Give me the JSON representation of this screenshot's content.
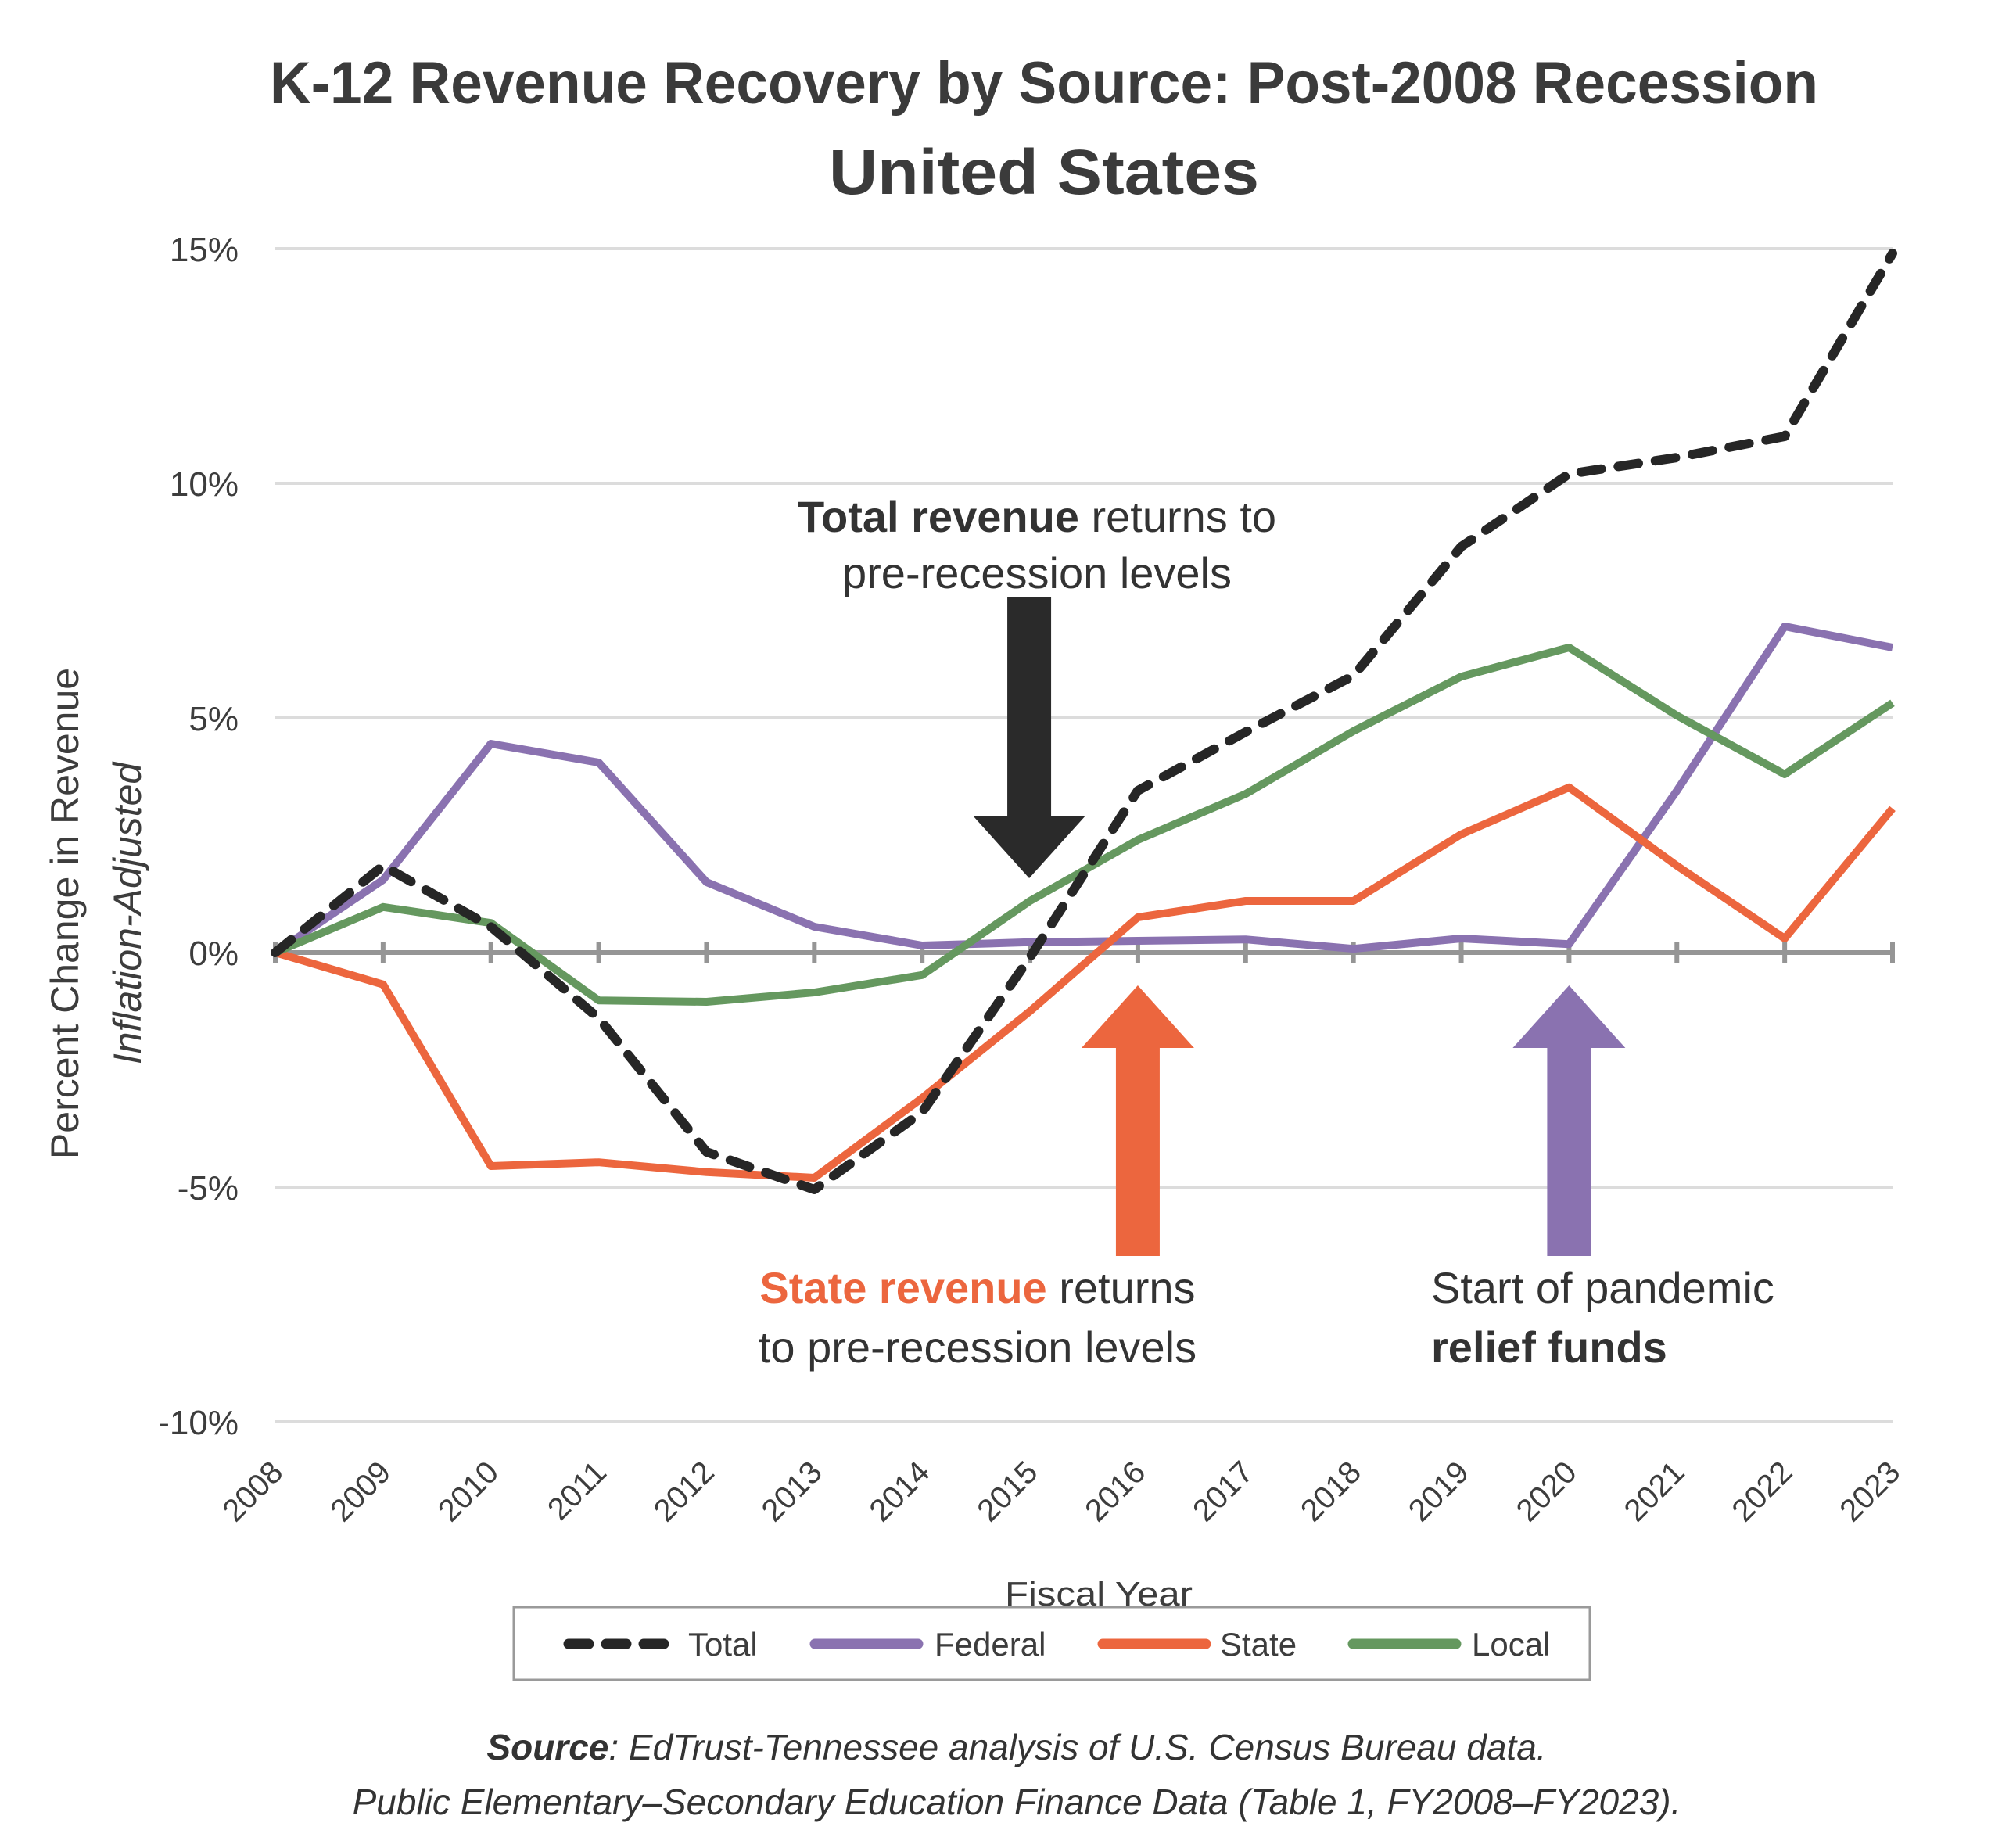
{
  "chart_data": {
    "type": "line",
    "title": "K-12 Revenue Recovery by Source: Post-2008 Recession",
    "subtitle": "United States",
    "xlabel": "Fiscal Year",
    "ylabel": "Percent  Change in Revenue",
    "ylabel_sub": "Inflation-Adjusted",
    "x": [
      "2008",
      "2009",
      "2010",
      "2011",
      "2012",
      "2013",
      "2014",
      "2015",
      "2016",
      "2017",
      "2018",
      "2019",
      "2020",
      "2021",
      "2022",
      "2023"
    ],
    "ylim": [
      -10,
      15
    ],
    "yticks": [
      -10,
      -5,
      0,
      5,
      10,
      15
    ],
    "ytick_labels": [
      "-10%",
      "-5%",
      "0%",
      "5%",
      "10%",
      "15%"
    ],
    "grid": true,
    "legend_position": "bottom",
    "series": [
      {
        "name": "Total",
        "style": "dashed",
        "color": "#262626",
        "values": [
          0,
          1.85,
          0.55,
          -1.4,
          -4.25,
          -5.05,
          -3.4,
          -0.1,
          3.45,
          4.7,
          5.9,
          8.65,
          10.2,
          10.55,
          11.0,
          14.9
        ]
      },
      {
        "name": "Federal",
        "style": "solid",
        "color": "#8a72b0",
        "values": [
          0,
          1.55,
          4.45,
          4.05,
          1.5,
          0.55,
          0.15,
          0.22,
          0.25,
          0.28,
          0.08,
          0.3,
          0.18,
          3.45,
          6.95,
          6.5
        ]
      },
      {
        "name": "State",
        "style": "solid",
        "color": "#ec663e",
        "values": [
          0,
          -0.68,
          -4.55,
          -4.47,
          -4.68,
          -4.8,
          -3.1,
          -1.25,
          0.75,
          1.1,
          1.1,
          2.52,
          3.52,
          1.85,
          0.3,
          3.07
        ]
      },
      {
        "name": "Local",
        "style": "solid",
        "color": "#65985f",
        "values": [
          0,
          0.97,
          0.63,
          -1.02,
          -1.05,
          -0.85,
          -0.48,
          1.1,
          2.4,
          3.38,
          4.72,
          5.88,
          6.5,
          5.05,
          3.8,
          5.32
        ]
      }
    ],
    "annotations": [
      {
        "id": "total",
        "arrow": "down",
        "arrow_color": "#2a2a2a",
        "points_to_year": "2015",
        "line1_bold": "Total revenue",
        "line1_rest": " returns to",
        "line2": "pre-recession levels",
        "bold_color": "#2a2a2a"
      },
      {
        "id": "state",
        "arrow": "up",
        "arrow_color": "#ec663e",
        "points_to_year": "2016",
        "line1_bold": "State revenue",
        "line1_rest": " returns",
        "line2": "to pre-recession levels",
        "bold_color": "#ec663e"
      },
      {
        "id": "federal",
        "arrow": "up",
        "arrow_color": "#8a72b0",
        "points_to_year": "2020",
        "line1": "Start of pandemic",
        "line2_bold": "relief funds",
        "bold_color": "#8a72b0"
      }
    ],
    "source_label": "Source",
    "source_text": ": EdTrust-Tennessee analysis of U.S. Census Bureau data.",
    "source_line2": "Public Elementary–Secondary Education Finance Data (Table 1, FY2008–FY2023)."
  }
}
